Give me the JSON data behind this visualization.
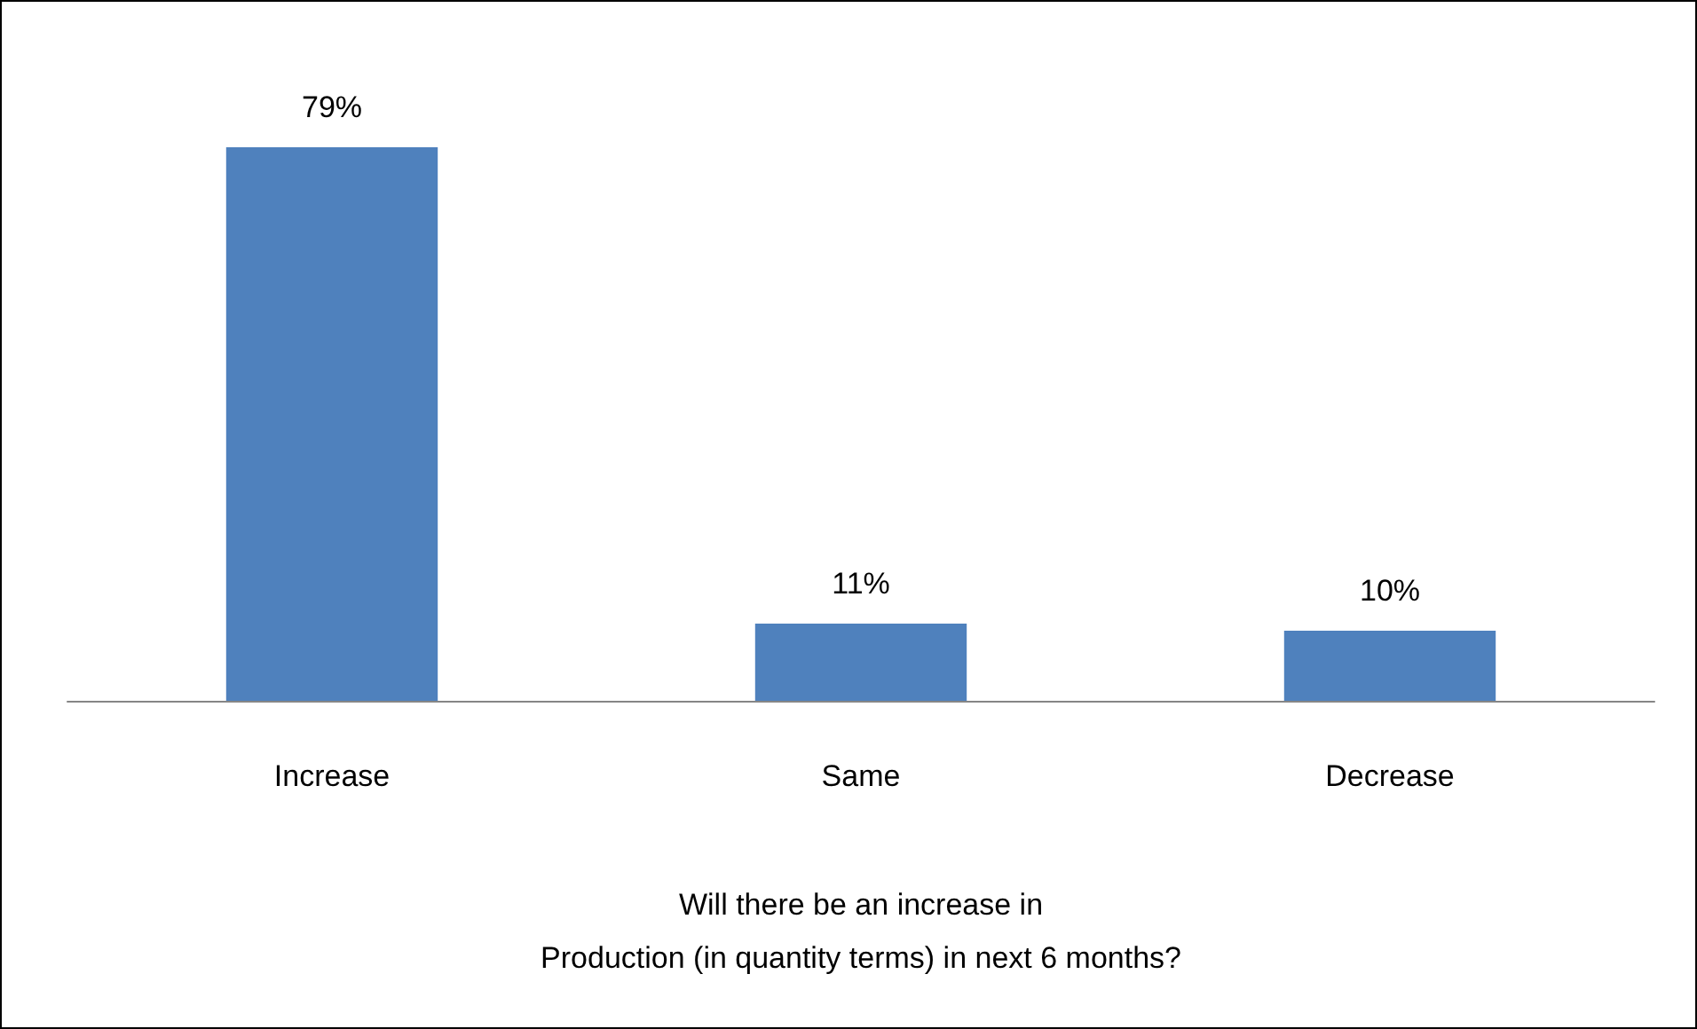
{
  "chart_data": {
    "type": "bar",
    "xlabel": "Will there be an increase in\nProduction (in quantity terms) in next 6 months?",
    "categories": [
      "Increase",
      "Same",
      "Decrease"
    ],
    "values": [
      79,
      11,
      10
    ],
    "value_labels": [
      "79%",
      "11%",
      "10%"
    ],
    "color": "#4f81bd"
  }
}
